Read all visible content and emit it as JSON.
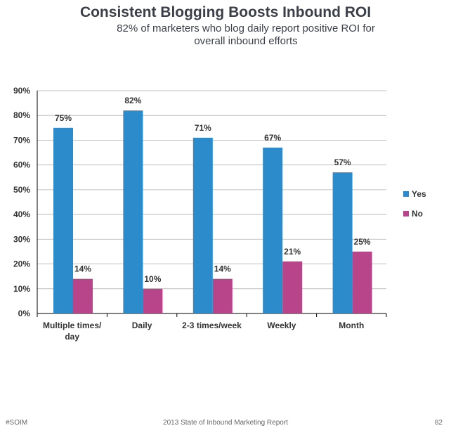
{
  "title": "Consistent Blogging Boosts Inbound ROI",
  "subtitle": "82% of marketers who blog daily report positive ROI for overall inbound efforts",
  "colors": {
    "yes": "#2b8bcb",
    "no": "#b8448a",
    "grid": "#bfbfbf",
    "axis": "#000000",
    "text": "#333333"
  },
  "chart_data": {
    "type": "bar",
    "title": "Consistent Blogging Boosts Inbound ROI",
    "subtitle": "82% of marketers who blog daily report positive ROI for overall inbound efforts",
    "categories": [
      [
        "Multiple times/",
        "day"
      ],
      [
        "Daily"
      ],
      [
        "2-3 times/week"
      ],
      [
        "Weekly"
      ],
      [
        "Month"
      ]
    ],
    "series": [
      {
        "name": "Yes",
        "values": [
          75,
          82,
          71,
          67,
          57
        ],
        "labels": [
          "75%",
          "82%",
          "71%",
          "67%",
          "57%"
        ]
      },
      {
        "name": "No",
        "values": [
          14,
          10,
          14,
          21,
          25
        ],
        "labels": [
          "14%",
          "10%",
          "14%",
          "21%",
          "25%"
        ]
      }
    ],
    "ylim": [
      0,
      90
    ],
    "yticks": [
      "0%",
      "10%",
      "20%",
      "30%",
      "40%",
      "50%",
      "60%",
      "70%",
      "80%",
      "90%"
    ],
    "grid": true,
    "legend_position": "right"
  },
  "footer": {
    "left": "#SOIM",
    "center": "2013 State of Inbound Marketing Report",
    "right": "82"
  }
}
